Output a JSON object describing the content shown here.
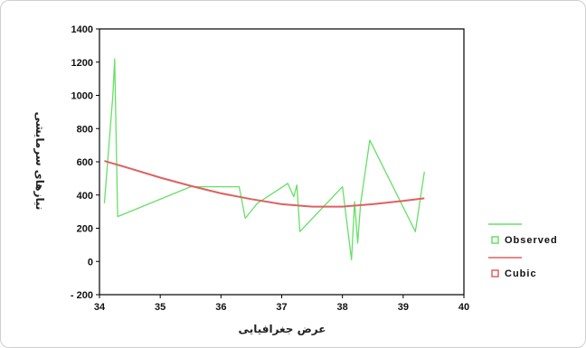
{
  "chart_data": {
    "type": "line",
    "title": "",
    "xlabel": "عرض جغرافیایی",
    "ylabel": "نیازهای سرمایشی",
    "xlim": [
      34,
      40
    ],
    "ylim": [
      -200,
      1400
    ],
    "x_ticks": [
      "34",
      "35",
      "36",
      "37",
      "38",
      "39",
      "40"
    ],
    "y_ticks": [
      "- 200",
      "0",
      "200",
      "400",
      "600",
      "800",
      "1000",
      "1200",
      "1400"
    ],
    "legend_position": "right",
    "colors": {
      "Observed": "#66e066",
      "Cubic": "#e06060"
    },
    "series": [
      {
        "name": "Observed",
        "x": [
          34.08,
          34.22,
          34.25,
          34.3,
          35.5,
          36.3,
          36.4,
          36.6,
          37.1,
          37.2,
          37.25,
          37.3,
          38.0,
          38.15,
          38.2,
          38.25,
          38.3,
          38.45,
          39.2,
          39.35
        ],
        "y": [
          350,
          1000,
          1220,
          270,
          450,
          450,
          260,
          350,
          470,
          390,
          460,
          180,
          450,
          10,
          360,
          110,
          350,
          730,
          180,
          540
        ]
      },
      {
        "name": "Cubic",
        "x": [
          34.08,
          34.5,
          35.0,
          35.5,
          36.0,
          36.5,
          37.0,
          37.5,
          38.0,
          38.5,
          39.0,
          39.35
        ],
        "y": [
          605,
          560,
          505,
          455,
          410,
          375,
          345,
          330,
          330,
          345,
          365,
          380
        ]
      }
    ]
  }
}
